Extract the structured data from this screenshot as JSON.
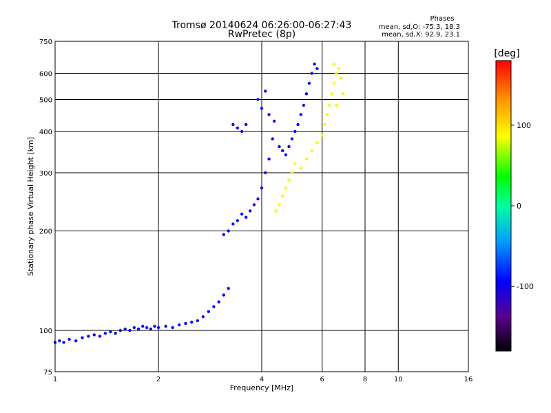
{
  "chart_data": {
    "type": "scatter",
    "title": "Tromsø 20140624 06:26:00-06:27:43",
    "subtitle": "RwPretec (8p)",
    "xlabel": "Frequency [MHz]",
    "ylabel": "Stationary phase Virtual Height [km]",
    "x_scale": "log",
    "y_scale": "log",
    "xlim": [
      1,
      16
    ],
    "ylim": [
      75,
      750
    ],
    "x_ticks": [
      1,
      2,
      4,
      6,
      8,
      10,
      16
    ],
    "y_ticks": [
      75,
      100,
      200,
      300,
      400,
      500,
      600,
      750
    ],
    "x_gridlines": [
      2,
      4,
      6,
      8,
      10
    ],
    "y_gridlines": [
      100,
      200,
      300,
      400,
      500,
      600
    ],
    "grid": true,
    "stats": {
      "heading": "Phases",
      "line_o": "mean, sd,O: -75.3, 18.3",
      "line_x": "mean, sd,X:  92.9, 23.1"
    },
    "colorbar": {
      "label": "[deg]",
      "range": [
        -180,
        180
      ],
      "ticks": [
        100,
        0,
        -100
      ],
      "colormap": "rainbow"
    },
    "series": [
      {
        "name": "O",
        "color_phase": -90,
        "points": [
          [
            1.0,
            92
          ],
          [
            1.03,
            93
          ],
          [
            1.06,
            92
          ],
          [
            1.1,
            94
          ],
          [
            1.15,
            93
          ],
          [
            1.2,
            95
          ],
          [
            1.25,
            96
          ],
          [
            1.3,
            97
          ],
          [
            1.35,
            96
          ],
          [
            1.4,
            98
          ],
          [
            1.45,
            99
          ],
          [
            1.5,
            98
          ],
          [
            1.55,
            100
          ],
          [
            1.6,
            101
          ],
          [
            1.65,
            100
          ],
          [
            1.7,
            102
          ],
          [
            1.75,
            101
          ],
          [
            1.8,
            103
          ],
          [
            1.85,
            102
          ],
          [
            1.9,
            101
          ],
          [
            1.95,
            103
          ],
          [
            2.0,
            102
          ],
          [
            2.1,
            103
          ],
          [
            2.2,
            102
          ],
          [
            2.3,
            104
          ],
          [
            2.4,
            105
          ],
          [
            2.5,
            106
          ],
          [
            2.6,
            107
          ],
          [
            2.7,
            110
          ],
          [
            2.8,
            114
          ],
          [
            2.9,
            118
          ],
          [
            3.0,
            122
          ],
          [
            3.1,
            128
          ],
          [
            3.2,
            134
          ],
          [
            3.1,
            195
          ],
          [
            3.2,
            200
          ],
          [
            3.3,
            210
          ],
          [
            3.4,
            215
          ],
          [
            3.5,
            225
          ],
          [
            3.6,
            220
          ],
          [
            3.7,
            230
          ],
          [
            3.8,
            240
          ],
          [
            3.9,
            250
          ],
          [
            4.0,
            270
          ],
          [
            4.1,
            300
          ],
          [
            4.2,
            330
          ],
          [
            4.3,
            380
          ],
          [
            4.35,
            430
          ],
          [
            4.2,
            450
          ],
          [
            4.0,
            470
          ],
          [
            3.9,
            500
          ],
          [
            4.1,
            530
          ],
          [
            3.6,
            420
          ],
          [
            3.5,
            400
          ],
          [
            3.4,
            410
          ],
          [
            3.3,
            420
          ],
          [
            4.5,
            360
          ],
          [
            4.6,
            350
          ],
          [
            4.7,
            340
          ],
          [
            4.8,
            360
          ],
          [
            4.9,
            380
          ],
          [
            5.0,
            400
          ],
          [
            5.1,
            420
          ],
          [
            5.2,
            450
          ],
          [
            5.3,
            480
          ],
          [
            5.4,
            520
          ],
          [
            5.5,
            560
          ],
          [
            5.6,
            600
          ],
          [
            5.7,
            640
          ],
          [
            5.8,
            620
          ]
        ]
      },
      {
        "name": "X",
        "color_phase": 90,
        "points": [
          [
            4.4,
            230
          ],
          [
            4.5,
            240
          ],
          [
            4.6,
            255
          ],
          [
            4.7,
            270
          ],
          [
            4.8,
            285
          ],
          [
            4.9,
            300
          ],
          [
            5.0,
            320
          ],
          [
            5.2,
            310
          ],
          [
            5.4,
            330
          ],
          [
            5.6,
            350
          ],
          [
            5.8,
            370
          ],
          [
            6.0,
            390
          ],
          [
            6.1,
            420
          ],
          [
            6.2,
            450
          ],
          [
            6.3,
            480
          ],
          [
            6.4,
            520
          ],
          [
            6.5,
            560
          ],
          [
            6.6,
            600
          ],
          [
            6.7,
            620
          ],
          [
            6.5,
            640
          ],
          [
            6.9,
            520
          ],
          [
            6.8,
            580
          ],
          [
            6.6,
            480
          ]
        ]
      }
    ]
  }
}
